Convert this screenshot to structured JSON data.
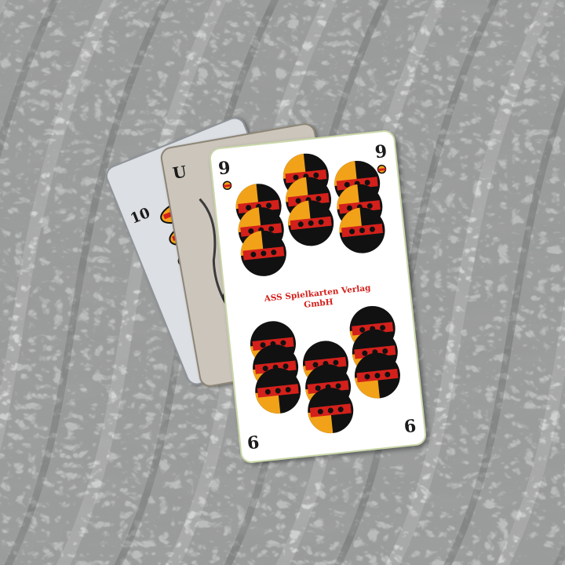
{
  "cards": {
    "back_left": {
      "rank": "10"
    },
    "back_mid": {
      "rank": "U"
    },
    "front": {
      "rank_top": "9",
      "rank_bottom": "9",
      "maker_line1": "ASS Spielkarten Verlag",
      "maker_line2": "GmbH"
    }
  },
  "colors": {
    "coin_black": "#111111",
    "coin_red": "#d3201b",
    "coin_gold": "#f2a219",
    "card_white": "#ffffff",
    "maker_text": "#d3201b"
  },
  "icons": {
    "suit": "schellen-bell-icon"
  }
}
